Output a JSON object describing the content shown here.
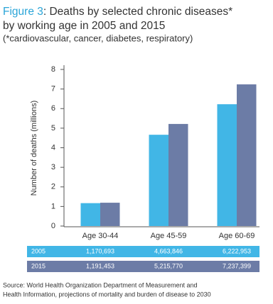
{
  "chart_data": {
    "type": "bar",
    "figure_label": "Figure 3",
    "title_lines": [
      ": Deaths by selected chronic diseases*",
      "by working age in 2005 and 2015"
    ],
    "subtitle": "(*cardiovascular, cancer, diabetes, respiratory)",
    "y_label": "Number of deaths (millions)",
    "categories": [
      "Age 30-44",
      "Age 45-59",
      "Age 60-69"
    ],
    "series": [
      {
        "name": "2005",
        "color": "#41b6e6",
        "values": [
          1.170693,
          4.663846,
          6.222953
        ],
        "value_labels": [
          "1,170,693",
          "4,663,846",
          "6,222,953"
        ]
      },
      {
        "name": "2015",
        "color": "#6c7ca6",
        "values": [
          1.191453,
          5.21577,
          7.237399
        ],
        "value_labels": [
          "1,191,453",
          "5,215,770",
          "7,237,399"
        ]
      }
    ],
    "ylim": [
      0,
      8
    ],
    "yticks": [
      0,
      1,
      2,
      3,
      4,
      5,
      6,
      7,
      8
    ],
    "grid": false,
    "source_lines": [
      "Source: World Health Organization Department of Measurement and",
      "Health Information, projections of mortality and burden of disease to 2030"
    ]
  }
}
